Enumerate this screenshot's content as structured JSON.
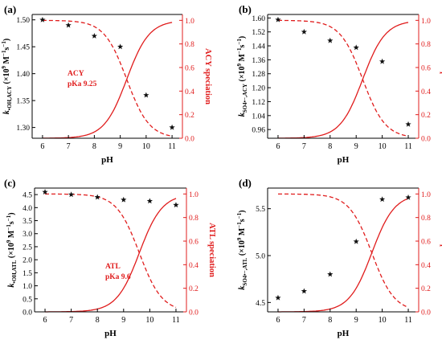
{
  "colors": {
    "axis": "#000000",
    "speciation": "#e01c1c",
    "marker": "#111111"
  },
  "chart_data": [
    {
      "panel_label": "(a)",
      "type": "scatter",
      "xlabel": "pH",
      "ylabel_parts": [
        "k",
        "•OH,ACY",
        " (×10",
        "9",
        " M",
        "−1",
        "s",
        "−1",
        ")"
      ],
      "y2label": "ACY speciation",
      "xlim": [
        5.6,
        11.4
      ],
      "ylim": [
        1.28,
        1.51
      ],
      "y2lim": [
        0,
        1.05
      ],
      "xticks": [
        6,
        7,
        8,
        9,
        10,
        11
      ],
      "yticks": [
        1.3,
        1.35,
        1.4,
        1.45,
        1.5
      ],
      "ytick_labels": [
        "1.30",
        "1.35",
        "1.40",
        "1.45",
        "1.50"
      ],
      "y2ticks": [
        0.0,
        0.2,
        0.4,
        0.6,
        0.8,
        1.0
      ],
      "y2tick_labels": [
        "0.0",
        "0.2",
        "0.4",
        "0.6",
        "0.8",
        "1.0"
      ],
      "series": [
        {
          "role": "rate",
          "marker": "star",
          "x": [
            6,
            7,
            8,
            9,
            10,
            11
          ],
          "y": [
            1.5,
            1.49,
            1.47,
            1.45,
            1.36,
            1.3
          ]
        }
      ],
      "pka": 9.25,
      "annotation": [
        "ACY",
        "pKa  9.25"
      ]
    },
    {
      "panel_label": "(b)",
      "type": "scatter",
      "xlabel": "pH",
      "ylabel_parts": [
        "k",
        "SO4•−,ACY",
        " (×10",
        "9",
        " M",
        "−1",
        "s",
        "−1",
        ")"
      ],
      "y2label": "ACY speciation",
      "xlim": [
        5.6,
        11.4
      ],
      "ylim": [
        0.91,
        1.62
      ],
      "y2lim": [
        0,
        1.05
      ],
      "xticks": [
        6,
        7,
        8,
        9,
        10,
        11
      ],
      "yticks": [
        0.96,
        1.04,
        1.12,
        1.2,
        1.28,
        1.36,
        1.44,
        1.52,
        1.6
      ],
      "ytick_labels": [
        "0.96",
        "1.04",
        "1.12",
        "1.20",
        "1.28",
        "1.36",
        "1.44",
        "1.52",
        "1.60"
      ],
      "y2ticks": [
        0.0,
        0.2,
        0.4,
        0.6,
        0.8,
        1.0
      ],
      "y2tick_labels": [
        "0.0",
        "0.2",
        "0.4",
        "0.6",
        "0.8",
        "1.0"
      ],
      "series": [
        {
          "role": "rate",
          "marker": "star",
          "x": [
            6,
            7,
            8,
            9,
            10,
            11
          ],
          "y": [
            1.59,
            1.52,
            1.47,
            1.43,
            1.35,
            0.99
          ]
        }
      ],
      "pka": 9.25,
      "annotation": []
    },
    {
      "panel_label": "(c)",
      "type": "scatter",
      "xlabel": "pH",
      "ylabel_parts": [
        "k",
        "•OH,ATL",
        " (×10",
        "9",
        " M",
        "−1",
        "s",
        "−1",
        ")"
      ],
      "y2label": "ATL speciation",
      "xlim": [
        5.6,
        11.4
      ],
      "ylim": [
        0.0,
        4.75
      ],
      "y2lim": [
        0,
        1.05
      ],
      "xticks": [
        6,
        7,
        8,
        9,
        10,
        11
      ],
      "yticks": [
        0.0,
        0.5,
        1.0,
        1.5,
        2.0,
        2.5,
        3.0,
        3.5,
        4.0,
        4.5
      ],
      "ytick_labels": [
        "0.0",
        "0.5",
        "1.0",
        "1.5",
        "2.0",
        "2.5",
        "3.0",
        "3.5",
        "4.0",
        "4.5"
      ],
      "y2ticks": [
        0.0,
        0.2,
        0.4,
        0.6,
        0.8,
        1.0
      ],
      "y2tick_labels": [
        "0.0",
        "0.2",
        "0.4",
        "0.6",
        "0.8",
        "1.0"
      ],
      "series": [
        {
          "role": "rate",
          "marker": "star",
          "x": [
            6,
            7,
            8,
            9,
            10,
            11
          ],
          "y": [
            4.6,
            4.5,
            4.4,
            4.3,
            4.25,
            4.1
          ]
        }
      ],
      "pka": 9.6,
      "annotation": [
        "ATL",
        "pKa  9.6"
      ]
    },
    {
      "panel_label": "(d)",
      "type": "scatter",
      "xlabel": "pH",
      "ylabel_parts": [
        "k",
        "SO4•−,ATL",
        " (×10",
        "9",
        " M",
        "−1",
        "s",
        "−1",
        ")"
      ],
      "y2label": "ATL speciation",
      "xlim": [
        5.6,
        11.4
      ],
      "ylim": [
        4.4,
        5.72
      ],
      "y2lim": [
        0,
        1.05
      ],
      "xticks": [
        6,
        7,
        8,
        9,
        10,
        11
      ],
      "yticks": [
        4.5,
        5.0,
        5.5
      ],
      "ytick_labels": [
        "4.5",
        "5.0",
        "5.5"
      ],
      "y2ticks": [
        0.0,
        0.2,
        0.4,
        0.6,
        0.8,
        1.0
      ],
      "y2tick_labels": [
        "0.0",
        "0.2",
        "0.4",
        "0.6",
        "0.8",
        "1.0"
      ],
      "series": [
        {
          "role": "rate",
          "marker": "star",
          "x": [
            6,
            7,
            8,
            9,
            10,
            11
          ],
          "y": [
            4.55,
            4.62,
            4.8,
            5.15,
            5.6,
            5.62
          ]
        }
      ],
      "pka": 9.6,
      "annotation": []
    }
  ]
}
